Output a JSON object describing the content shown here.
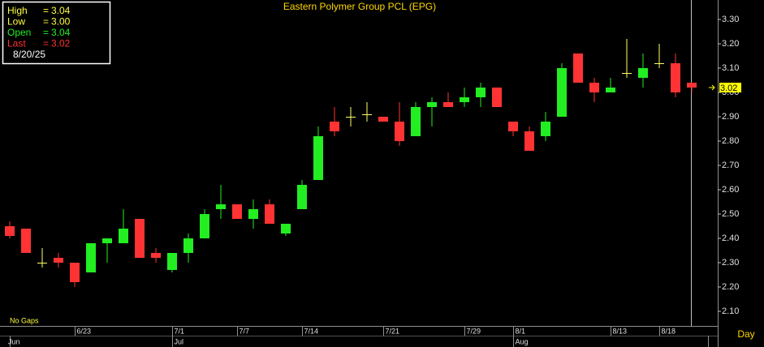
{
  "chart_data": {
    "type": "candlestick",
    "title": "Eastern Polymer Group PCL (EPG)",
    "info": {
      "rows": [
        {
          "label": "High",
          "sep": "=",
          "value": "3.04",
          "color": "#ffff40"
        },
        {
          "label": "Low",
          "sep": "=",
          "value": "3.00",
          "color": "#ffff40"
        },
        {
          "label": "Open",
          "sep": "=",
          "value": "3.04",
          "color": "#22ee22"
        },
        {
          "label": "Last",
          "sep": "=",
          "value": "3.02",
          "color": "#ff3030"
        }
      ],
      "date": "8/20/25"
    },
    "note": "No Gaps",
    "period": "Day",
    "categories": [
      null,
      null,
      null,
      null,
      "6/23",
      null,
      null,
      null,
      null,
      null,
      "7/1",
      null,
      null,
      null,
      "7/7",
      null,
      null,
      null,
      "7/14",
      null,
      null,
      null,
      null,
      "7/21",
      null,
      null,
      null,
      null,
      "7/29",
      null,
      null,
      "8/1",
      null,
      null,
      null,
      null,
      null,
      "8/13",
      null,
      null,
      "8/18",
      null,
      null,
      null
    ],
    "months": [
      "Jun",
      null,
      null,
      null,
      null,
      null,
      null,
      null,
      null,
      null,
      "Jul",
      null,
      null,
      null,
      null,
      null,
      null,
      null,
      null,
      null,
      null,
      null,
      null,
      null,
      null,
      null,
      null,
      null,
      null,
      null,
      null,
      "Aug",
      null,
      null,
      null,
      null,
      null,
      null,
      null,
      null,
      null,
      null,
      null
    ],
    "open": [
      2.45,
      2.44,
      2.3,
      2.32,
      2.3,
      2.26,
      2.38,
      2.38,
      2.48,
      2.34,
      2.27,
      2.34,
      2.4,
      2.52,
      2.54,
      2.48,
      2.54,
      2.42,
      2.52,
      2.64,
      2.88,
      2.9,
      2.91,
      2.9,
      2.88,
      2.82,
      2.94,
      2.96,
      2.96,
      2.98,
      3.02,
      2.88,
      2.84,
      2.82,
      2.9,
      3.16,
      3.04,
      3.0,
      3.08,
      3.06,
      3.12,
      3.12,
      3.04
    ],
    "high": [
      2.47,
      2.44,
      2.36,
      2.34,
      2.3,
      2.38,
      2.4,
      2.52,
      2.48,
      2.36,
      2.34,
      2.42,
      2.52,
      2.62,
      2.54,
      2.56,
      2.56,
      2.46,
      2.64,
      2.86,
      2.94,
      2.94,
      2.96,
      2.9,
      2.96,
      2.96,
      2.98,
      3.0,
      3.02,
      3.04,
      3.02,
      2.88,
      2.86,
      2.92,
      3.12,
      3.16,
      3.06,
      3.06,
      3.22,
      3.16,
      3.2,
      3.16,
      3.04
    ],
    "low": [
      2.4,
      2.34,
      2.28,
      2.28,
      2.2,
      2.26,
      2.3,
      2.38,
      2.32,
      2.3,
      2.26,
      2.3,
      2.4,
      2.48,
      2.48,
      2.44,
      2.46,
      2.41,
      2.52,
      2.64,
      2.82,
      2.86,
      2.88,
      2.88,
      2.78,
      2.82,
      2.86,
      2.94,
      2.94,
      2.94,
      2.94,
      2.82,
      2.76,
      2.8,
      2.9,
      3.04,
      2.96,
      3.0,
      3.06,
      3.02,
      3.1,
      2.98,
      3.0
    ],
    "close": [
      2.41,
      2.34,
      2.3,
      2.3,
      2.22,
      2.38,
      2.4,
      2.44,
      2.32,
      2.32,
      2.34,
      2.4,
      2.5,
      2.54,
      2.48,
      2.52,
      2.46,
      2.46,
      2.62,
      2.82,
      2.84,
      2.9,
      2.91,
      2.88,
      2.8,
      2.94,
      2.96,
      2.94,
      2.98,
      3.02,
      2.94,
      2.84,
      2.76,
      2.88,
      3.1,
      3.04,
      3.0,
      3.02,
      3.08,
      3.1,
      3.12,
      3.0,
      3.02
    ],
    "up_color": "#22ee22",
    "down_color": "#ff3333",
    "flat_color": "#ffff66",
    "last": {
      "value": 3.02,
      "label": "3.02"
    },
    "ylim": [
      2.04,
      3.38
    ],
    "yticks": [
      {
        "value": 2.1,
        "label": "2.10"
      },
      {
        "value": 2.2,
        "label": "2.20"
      },
      {
        "value": 2.3,
        "label": "2.30"
      },
      {
        "value": 2.4,
        "label": "2.40"
      },
      {
        "value": 2.5,
        "label": "2.50"
      },
      {
        "value": 2.6,
        "label": "2.60"
      },
      {
        "value": 2.7,
        "label": "2.70"
      },
      {
        "value": 2.8,
        "label": "2.80"
      },
      {
        "value": 2.9,
        "label": "2.90"
      },
      {
        "value": 3.0,
        "label": "3.00"
      },
      {
        "value": 3.1,
        "label": "3.10"
      },
      {
        "value": 3.2,
        "label": "3.20"
      },
      {
        "value": 3.3,
        "label": "3.30"
      }
    ]
  }
}
